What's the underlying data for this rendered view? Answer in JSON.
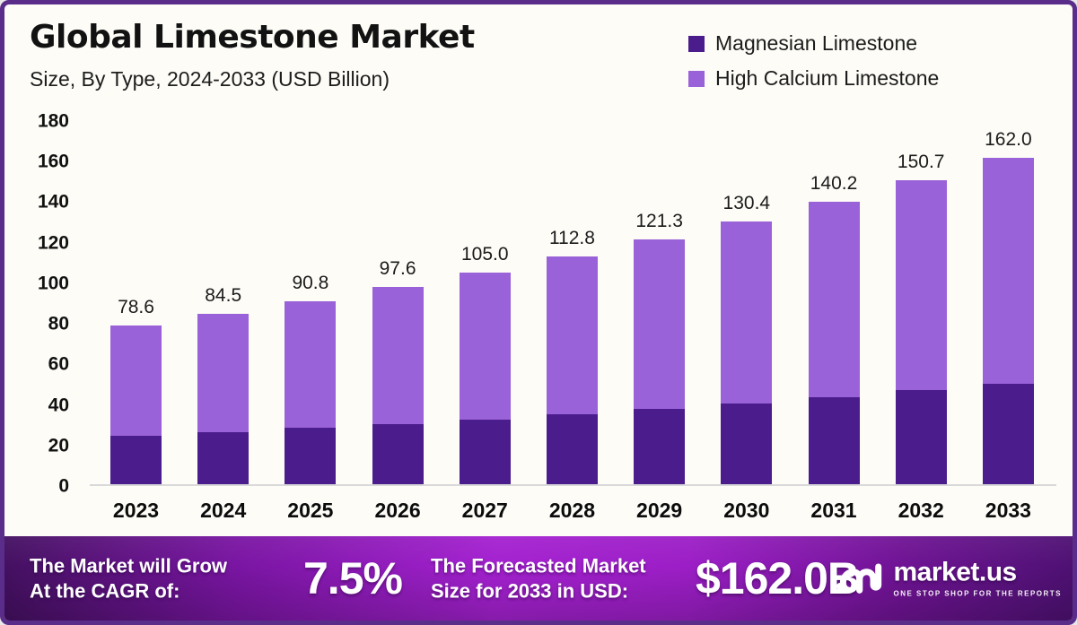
{
  "header": {
    "title": "Global Limestone Market",
    "subtitle": "Size, By Type, 2024-2033 (USD Billion)"
  },
  "legend": [
    {
      "label": "Magnesian Limestone",
      "color": "#4a1c8c"
    },
    {
      "label": "High Calcium Limestone",
      "color": "#9a62d8"
    }
  ],
  "chart_data": {
    "type": "bar",
    "stacked": true,
    "title": "Global Limestone Market Size, By Type, 2024-2033 (USD Billion)",
    "categories": [
      "2023",
      "2024",
      "2025",
      "2026",
      "2027",
      "2028",
      "2029",
      "2030",
      "2031",
      "2032",
      "2033"
    ],
    "series": [
      {
        "name": "Magnesian Limestone",
        "color": "#4a1c8c",
        "values": [
          24.0,
          25.8,
          27.8,
          30.0,
          32.2,
          34.5,
          37.2,
          40.0,
          43.3,
          46.5,
          50.0
        ]
      },
      {
        "name": "High Calcium Limestone",
        "color": "#9a62d8",
        "values": [
          54.6,
          58.7,
          63.0,
          67.6,
          72.8,
          78.3,
          84.1,
          90.4,
          96.9,
          104.2,
          112.0
        ]
      }
    ],
    "totals": [
      "78.6",
      "84.5",
      "90.8",
      "97.6",
      "105.0",
      "112.8",
      "121.3",
      "130.4",
      "140.2",
      "150.7",
      "162.0"
    ],
    "xlabel": "",
    "ylabel": "",
    "ylim": [
      0,
      180
    ],
    "yticks": [
      0,
      20,
      40,
      60,
      80,
      100,
      120,
      140,
      160,
      180
    ],
    "grid": false,
    "legend_position": "top-right"
  },
  "banner": {
    "cagr_line1": "The Market will Grow",
    "cagr_line2": "At the CAGR of:",
    "cagr_value": "7.5%",
    "forecast_line1": "The Forecasted Market",
    "forecast_line2": "Size for 2033 in USD:",
    "forecast_value": "$162.0B",
    "logo_text": "market.us",
    "logo_tagline": "ONE STOP SHOP FOR THE REPORTS"
  },
  "colors": {
    "card_border": "#5b2d8a",
    "card_background": "#fdfcf7",
    "axis_line": "#d9d9d9",
    "banner_gradient_start": "#441061",
    "banner_gradient_mid": "#a421d0",
    "banner_gradient_end": "#4e1173"
  }
}
